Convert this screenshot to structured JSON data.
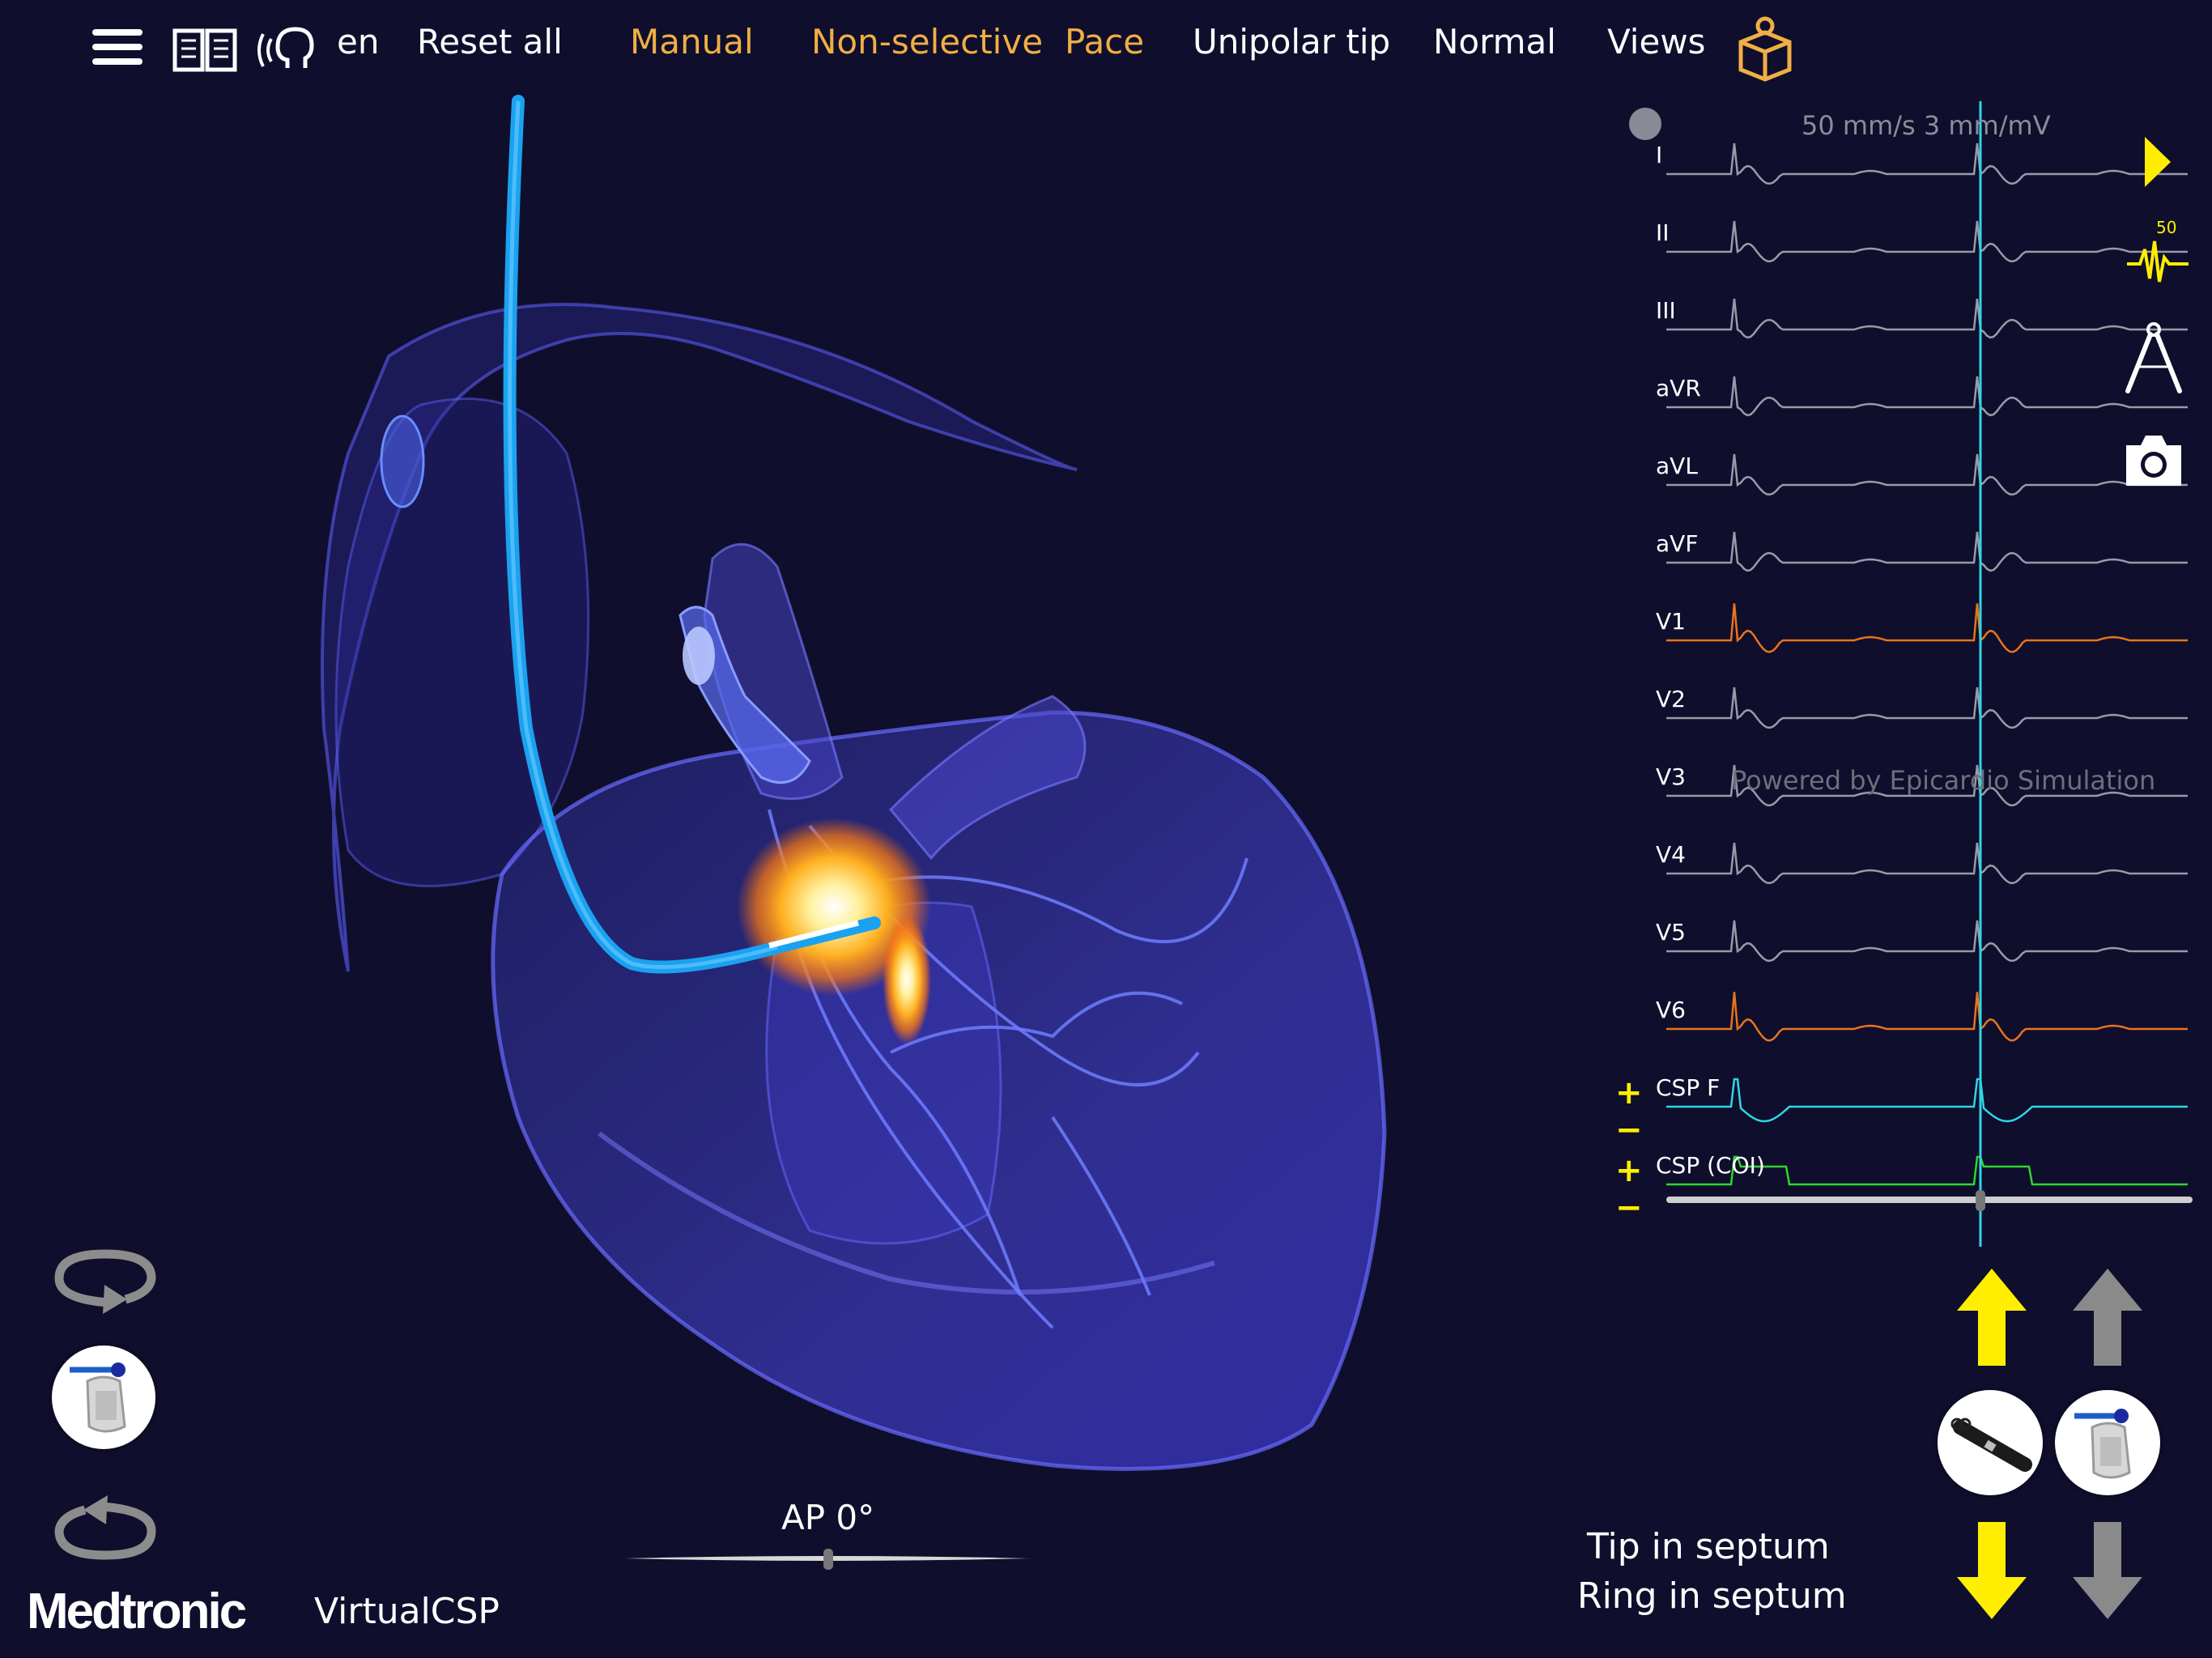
{
  "topbar": {
    "menu_icon": "hamburger-menu-icon",
    "manual_icon": "open-book-icon",
    "voice_icon": "voice-head-icon",
    "language": "en",
    "reset_all": "Reset all",
    "mode": "Manual",
    "capture": "Non-selective",
    "action": "Pace",
    "pacing_config": "Unipolar tip",
    "rhythm": "Normal",
    "views": "Views",
    "package_icon": "package-box-icon",
    "accent_color": "#f0ae44"
  },
  "ecg": {
    "speed_gain": "50 mm/s  3 mm/mV",
    "watermark": "Powered by Epicardio Simulation",
    "leads": [
      {
        "name": "I",
        "color": "#9a9aa8"
      },
      {
        "name": "II",
        "color": "#9a9aa8"
      },
      {
        "name": "III",
        "color": "#9a9aa8"
      },
      {
        "name": "aVR",
        "color": "#9a9aa8"
      },
      {
        "name": "aVL",
        "color": "#9a9aa8"
      },
      {
        "name": "aVF",
        "color": "#9a9aa8"
      },
      {
        "name": "V1",
        "color": "#e8741c"
      },
      {
        "name": "V2",
        "color": "#9a9aa8"
      },
      {
        "name": "V3",
        "color": "#9a9aa8"
      },
      {
        "name": "V4",
        "color": "#9a9aa8"
      },
      {
        "name": "V5",
        "color": "#9a9aa8"
      },
      {
        "name": "V6",
        "color": "#e8741c"
      },
      {
        "name": "CSP F",
        "color": "#2fd6e6"
      },
      {
        "name": "CSP (COI)",
        "color": "#2ed62e"
      }
    ],
    "gain_plus": "+",
    "gain_minus": "−",
    "tools": {
      "play": "play-icon",
      "sweep_speed_value": "50",
      "sweep_speed": "ecg-speed-icon",
      "calipers": "calipers-icon",
      "camera": "camera-icon"
    },
    "cursor_color": "#2fd6e6"
  },
  "view": {
    "angle_label": "AP 0°",
    "slider_value": 0.5
  },
  "left_tools": {
    "rotate_cw": "rotate-clockwise-icon",
    "sheath": "sheath-handle-icon",
    "rotate_ccw": "rotate-counterclockwise-icon"
  },
  "lead_controls": {
    "advance_lead": "arrow-up-icon",
    "advance_sheath": "arrow-up-icon",
    "withdraw_lead": "arrow-down-icon",
    "withdraw_sheath": "arrow-down-icon",
    "lead_tool": "lead-screw-icon",
    "sheath_tool": "sheath-handle-icon",
    "active_color": "#ffee00",
    "inactive_color": "#8a8a8a"
  },
  "status": {
    "tip": "Tip in septum",
    "ring": "Ring in septum"
  },
  "branding": {
    "company": "Medtronic",
    "app": "VirtualCSP"
  }
}
